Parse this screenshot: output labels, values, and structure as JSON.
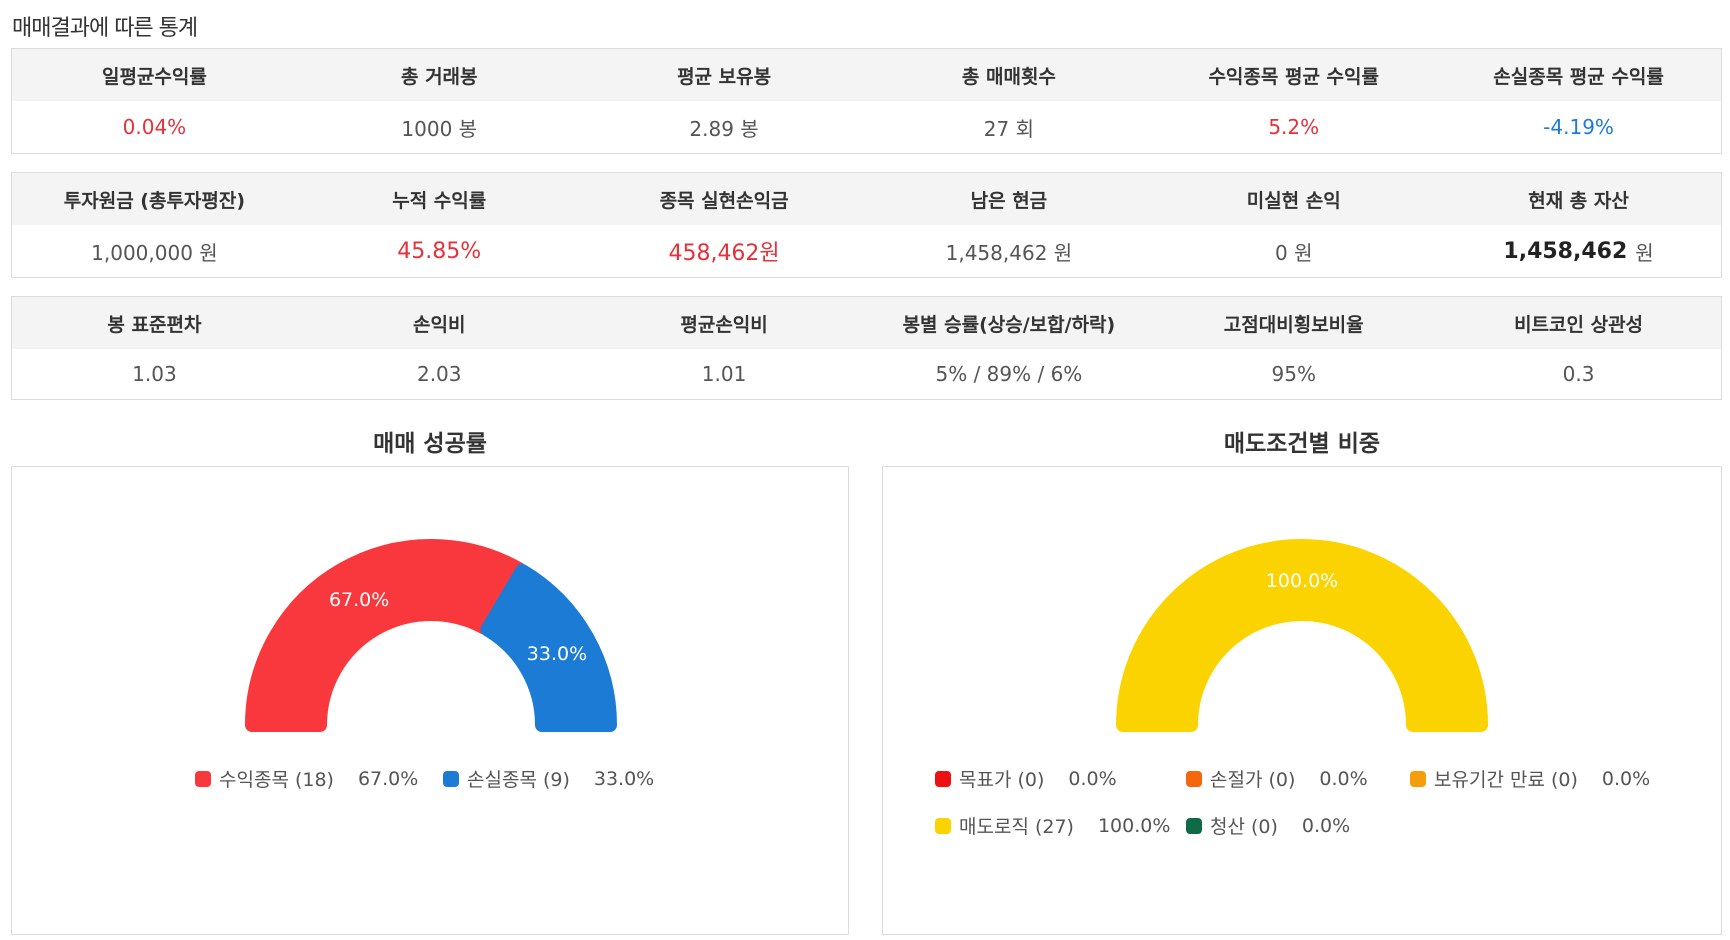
{
  "page_title": "매매결과에 따른 통계",
  "stats": [
    {
      "headers": [
        "일평균수익률",
        "총 거래봉",
        "평균 보유봉",
        "총 매매횟수",
        "수익종목 평균 수익률",
        "손실종목 평균 수익률"
      ],
      "values": [
        "0.04%",
        "1000 봉",
        "2.89 봉",
        "27 회",
        "5.2%",
        "-4.19%"
      ],
      "colors": [
        "red",
        "",
        "",
        "",
        "red",
        "blue"
      ]
    },
    {
      "headers": [
        "투자원금 (총투자평잔)",
        "누적 수익률",
        "종목 실현손익금",
        "남은 현금",
        "미실현 손익",
        "현재 총 자산"
      ],
      "values": [
        "1,000,000 원",
        "45.85%",
        "458,462원",
        "1,458,462 원",
        "0 원",
        ""
      ],
      "colors": [
        "",
        "red",
        "red",
        "",
        "",
        ""
      ],
      "total_asset": {
        "number": "1,458,462",
        "unit": "원"
      }
    },
    {
      "headers": [
        "봉 표준편차",
        "손익비",
        "평균손익비",
        "봉별 승률(상승/보합/하락)",
        "고점대비횡보비율",
        "비트코인 상관성"
      ],
      "values": [
        "1.03",
        "2.03",
        "1.01",
        "5% / 89% / 6%",
        "95%",
        "0.3"
      ],
      "colors": [
        "",
        "",
        "",
        "",
        "",
        ""
      ]
    }
  ],
  "chart_data": [
    {
      "type": "pie",
      "subtype": "half-donut",
      "title": "매매 성공률",
      "series": [
        {
          "name": "수익종목 (18)",
          "value": 67.0,
          "label": "67.0%",
          "color": "#f8383d"
        },
        {
          "name": "손실종목 (9)",
          "value": 33.0,
          "label": "33.0%",
          "color": "#1c7cd5"
        }
      ],
      "legend_position": "bottom"
    },
    {
      "type": "pie",
      "subtype": "half-donut",
      "title": "매도조건별 비중",
      "series": [
        {
          "name": "목표가 (0)",
          "value": 0.0,
          "label": "0.0%",
          "color": "#ee1111"
        },
        {
          "name": "손절가 (0)",
          "value": 0.0,
          "label": "0.0%",
          "color": "#f4670c"
        },
        {
          "name": "보유기간 만료 (0)",
          "value": 0.0,
          "label": "0.0%",
          "color": "#f59e0b"
        },
        {
          "name": "매도로직 (27)",
          "value": 100.0,
          "label": "100.0%",
          "color": "#fbd300"
        },
        {
          "name": "청산 (0)",
          "value": 0.0,
          "label": "0.0%",
          "color": "#0f6b47"
        }
      ],
      "legend_position": "bottom"
    }
  ]
}
